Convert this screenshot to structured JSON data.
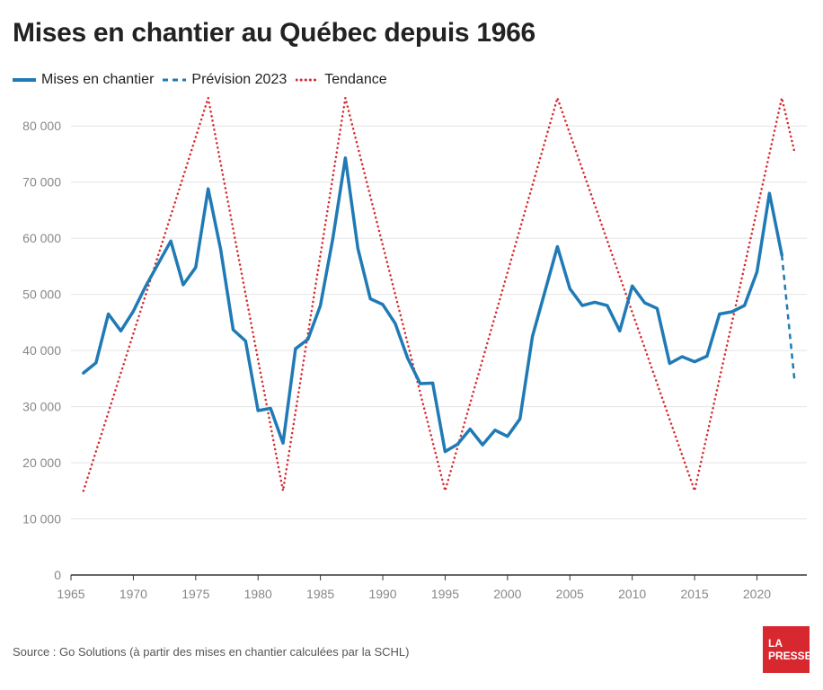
{
  "header": {
    "title": "Mises en chantier au Québec depuis 1966"
  },
  "legend": {
    "items": [
      {
        "label": "Mises en chantier",
        "style": "solid",
        "color": "#1f7ab5"
      },
      {
        "label": "Prévision 2023",
        "style": "dashed",
        "color": "#1f7ab5"
      },
      {
        "label": "Tendance",
        "style": "dotted",
        "color": "#d7282f"
      }
    ]
  },
  "footer": {
    "source": "Source : Go Solutions (à partir des mises en chantier calculées par la SCHL)",
    "logo_line1": "LA",
    "logo_line2": "PRESSE"
  },
  "chart_data": {
    "type": "line",
    "title": "Mises en chantier au Québec depuis 1966",
    "xlabel": "",
    "ylabel": "",
    "xlim": [
      1965,
      2024
    ],
    "ylim": [
      0,
      85000
    ],
    "xticks": [
      1965,
      1970,
      1975,
      1980,
      1985,
      1990,
      1995,
      2000,
      2005,
      2010,
      2015,
      2020
    ],
    "xtick_labels": [
      "1965",
      "1970",
      "1975",
      "1980",
      "1985",
      "1990",
      "1995",
      "2000",
      "2005",
      "2010",
      "2015",
      "2020"
    ],
    "yticks": [
      0,
      10000,
      20000,
      30000,
      40000,
      50000,
      60000,
      70000,
      80000
    ],
    "ytick_labels": [
      "0",
      "10 000",
      "20 000",
      "30 000",
      "40 000",
      "50 000",
      "60 000",
      "70 000",
      "80 000"
    ],
    "grid": true,
    "legend_position": "top-left",
    "series": [
      {
        "name": "Mises en chantier",
        "style": "solid",
        "color": "#1f7ab5",
        "x": [
          1966,
          1967,
          1968,
          1969,
          1970,
          1971,
          1972,
          1973,
          1974,
          1975,
          1976,
          1977,
          1978,
          1979,
          1980,
          1981,
          1982,
          1983,
          1984,
          1985,
          1986,
          1987,
          1988,
          1989,
          1990,
          1991,
          1992,
          1993,
          1994,
          1995,
          1996,
          1997,
          1998,
          1999,
          2000,
          2001,
          2002,
          2003,
          2004,
          2005,
          2006,
          2007,
          2008,
          2009,
          2010,
          2011,
          2012,
          2013,
          2014,
          2015,
          2016,
          2017,
          2018,
          2019,
          2020,
          2021,
          2022
        ],
        "y": [
          36000,
          37800,
          46500,
          43500,
          47000,
          51500,
          55500,
          59500,
          51700,
          54800,
          68800,
          58000,
          43700,
          41700,
          29300,
          29700,
          23500,
          40300,
          42000,
          48000,
          60000,
          74300,
          58200,
          49200,
          48200,
          44800,
          38600,
          34100,
          34200,
          22000,
          23300,
          26000,
          23200,
          25800,
          24700,
          27800,
          42500,
          50500,
          58500,
          51000,
          48000,
          48600,
          48000,
          43500,
          51500,
          48500,
          47500,
          37700,
          38900,
          38000,
          39000,
          46500,
          46900,
          48000,
          54000,
          68000,
          57000
        ]
      },
      {
        "name": "Prévision 2023",
        "style": "dashed",
        "color": "#1f7ab5",
        "x": [
          2022,
          2023
        ],
        "y": [
          57000,
          35000
        ]
      },
      {
        "name": "Tendance",
        "style": "dotted",
        "color": "#d7282f",
        "x": [
          1966,
          1976,
          1982,
          1987,
          1995,
          2004,
          2015,
          2022,
          2023
        ],
        "y": [
          15000,
          85000,
          15000,
          85000,
          15000,
          85000,
          15000,
          85000,
          75500
        ]
      }
    ]
  }
}
